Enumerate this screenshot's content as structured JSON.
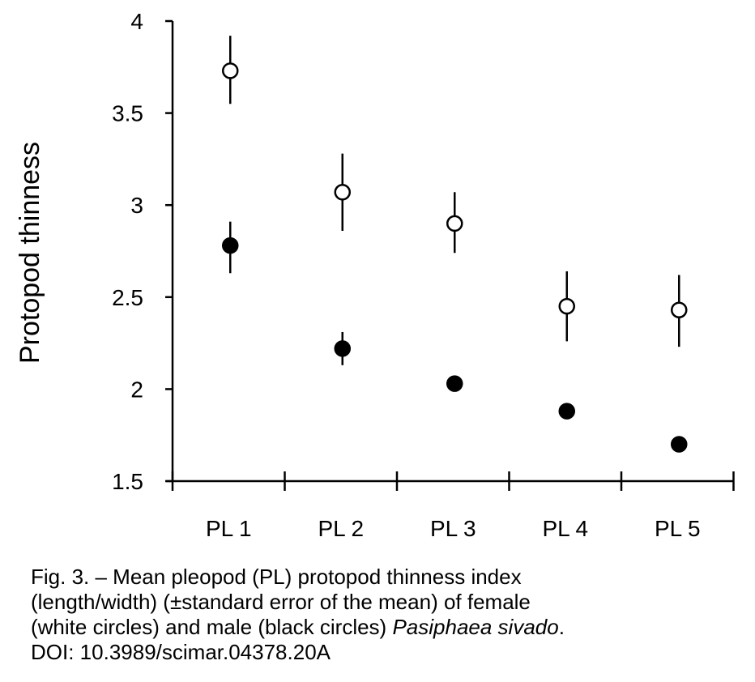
{
  "chart_data": {
    "type": "scatter",
    "title": "",
    "xlabel": "",
    "ylabel": "Protopod thinness",
    "categories": [
      "PL 1",
      "PL 2",
      "PL 3",
      "PL 4",
      "PL 5"
    ],
    "yticks": [
      "4",
      "3.5",
      "3",
      "2.5",
      "2",
      "1.5"
    ],
    "ylim": [
      1.5,
      4
    ],
    "grid": false,
    "legend": "none",
    "series": [
      {
        "marker": "open-circle",
        "values": [
          3.73,
          3.07,
          2.9,
          2.45,
          2.43
        ],
        "error_low": [
          3.55,
          2.86,
          2.74,
          2.26,
          2.23
        ],
        "error_high": [
          3.92,
          3.28,
          3.07,
          2.64,
          2.62
        ]
      },
      {
        "marker": "filled-circle",
        "values": [
          2.78,
          2.22,
          2.03,
          1.88,
          1.7
        ],
        "error_low": [
          2.63,
          2.13,
          null,
          null,
          null
        ],
        "error_high": [
          2.91,
          2.31,
          null,
          null,
          null
        ]
      }
    ]
  },
  "caption": {
    "line1": "Fig. 3. – Mean pleopod (PL) protopod thinness index",
    "line2": "(length/width) (±standard error of the mean) of female",
    "line3_prefix": "(white circles) and male (black circles) ",
    "line3_species": "Pasiphaea sivado",
    "line3_suffix": ".",
    "line4": "DOI: 10.3989/scimar.04378.20A"
  },
  "colors": {
    "ink": "#000000",
    "background": "#ffffff"
  }
}
